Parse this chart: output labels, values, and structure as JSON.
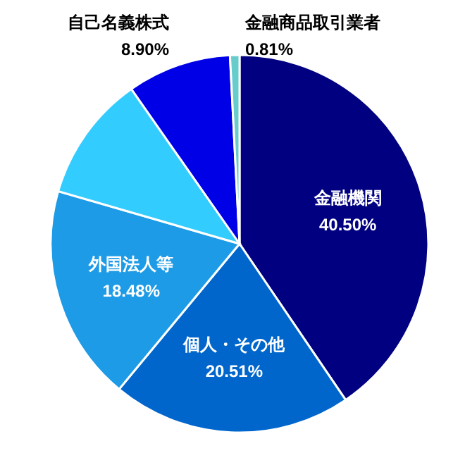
{
  "chart_data": {
    "type": "pie",
    "categories": [
      "金融機関",
      "個人・その他",
      "外国法人等",
      null,
      "自己名義株式",
      "金融商品取引業者"
    ],
    "values": [
      40.5,
      20.51,
      18.48,
      10.8,
      8.9,
      0.81
    ],
    "value_labels": [
      "40.50%",
      "20.51%",
      "18.48%",
      null,
      "8.90%",
      "0.81%"
    ],
    "colors": [
      "#000080",
      "#0066cc",
      "#1e9be6",
      "#33ccff",
      "#0000e6",
      "#66cccc"
    ]
  }
}
